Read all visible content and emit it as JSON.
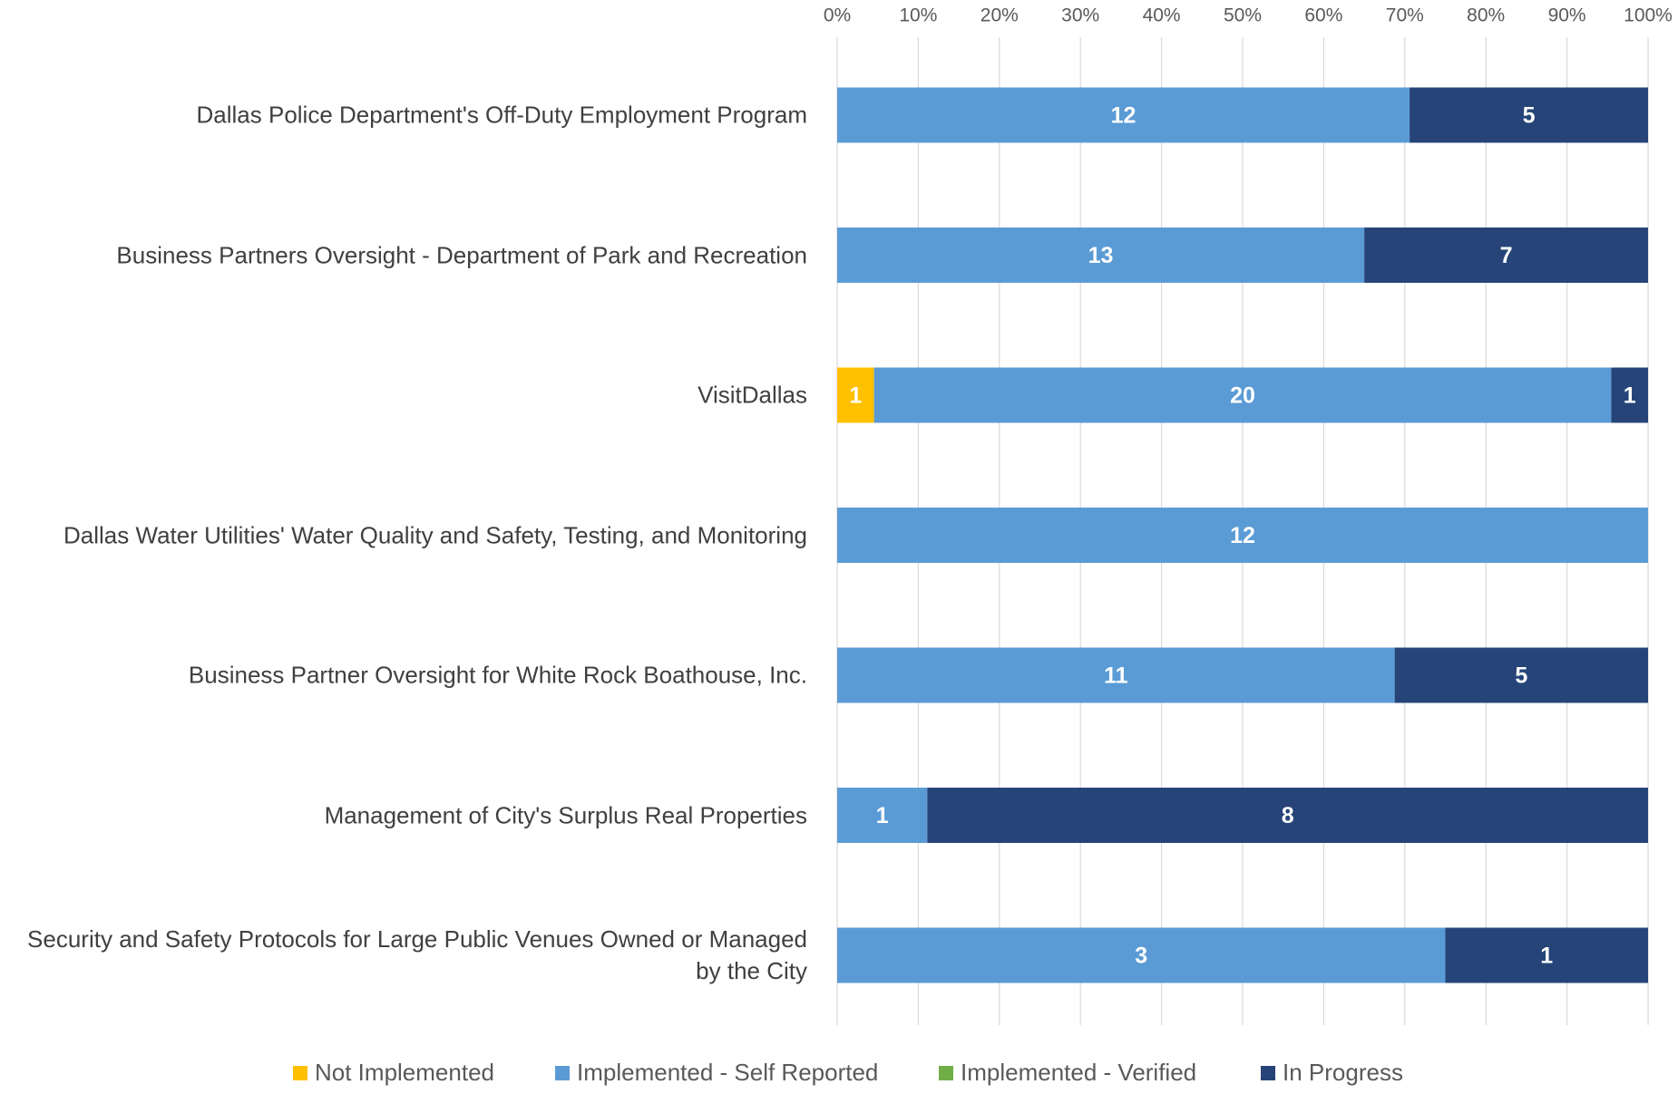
{
  "chart_data": {
    "type": "stacked_bar_100",
    "categories": [
      "Dallas Police Department's Off-Duty Employment Program",
      "Business Partners Oversight - Department of Park and Recreation",
      "VisitDallas",
      "Dallas Water Utilities' Water Quality and Safety, Testing, and Monitoring",
      "Business Partner Oversight for White Rock Boathouse, Inc.",
      "Management of City's Surplus Real Properties",
      "Security and Safety Protocols for Large Public Venues Owned or Managed by the City"
    ],
    "series": [
      {
        "name": "Not Implemented",
        "color": "#ffc000",
        "values": [
          0,
          0,
          1,
          0,
          0,
          0,
          0
        ]
      },
      {
        "name": "Implemented - Self Reported",
        "color": "#5b9bd5",
        "values": [
          12,
          13,
          20,
          12,
          11,
          1,
          3
        ]
      },
      {
        "name": "Implemented - Verified",
        "color": "#70ad47",
        "values": [
          0,
          0,
          0,
          0,
          0,
          0,
          0
        ]
      },
      {
        "name": "In Progress",
        "color": "#264478",
        "values": [
          5,
          7,
          1,
          0,
          5,
          8,
          1
        ]
      }
    ],
    "xlim": [
      0,
      100
    ],
    "xticks": [
      {
        "value": 0,
        "label": "0%"
      },
      {
        "value": 10,
        "label": "10%"
      },
      {
        "value": 20,
        "label": "20%"
      },
      {
        "value": 30,
        "label": "30%"
      },
      {
        "value": 40,
        "label": "40%"
      },
      {
        "value": 50,
        "label": "50%"
      },
      {
        "value": 60,
        "label": "60%"
      },
      {
        "value": 70,
        "label": "70%"
      },
      {
        "value": 80,
        "label": "80%"
      },
      {
        "value": 90,
        "label": "90%"
      },
      {
        "value": 100,
        "label": "100%"
      }
    ],
    "grid": true,
    "legend": "bottom"
  }
}
